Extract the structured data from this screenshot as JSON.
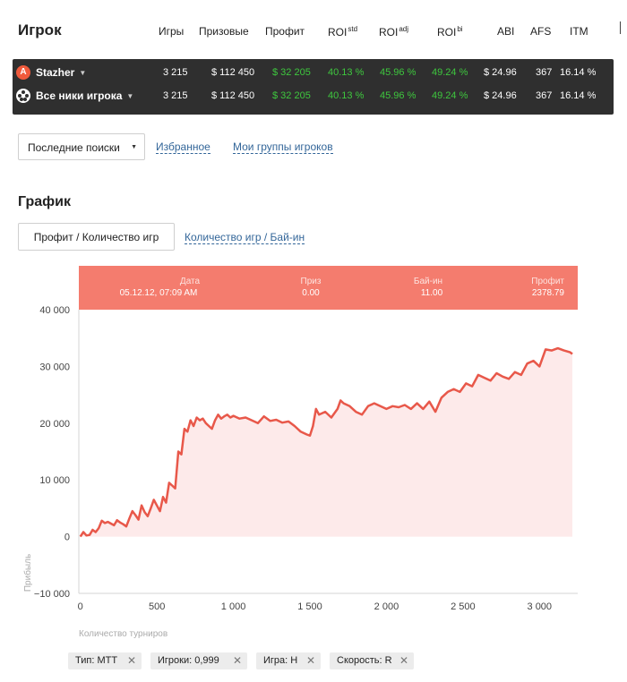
{
  "header": {
    "title": "Игрок",
    "columns": [
      {
        "label": "Игры",
        "sup": ""
      },
      {
        "label": "Призовые",
        "sup": ""
      },
      {
        "label": "Профит",
        "sup": ""
      },
      {
        "label": "ROI",
        "sup": "std"
      },
      {
        "label": "ROI",
        "sup": "adj"
      },
      {
        "label": "ROI",
        "sup": "bi"
      },
      {
        "label": "ABI",
        "sup": ""
      },
      {
        "label": "AFS",
        "sup": ""
      },
      {
        "label": "ITM",
        "sup": ""
      }
    ]
  },
  "players": [
    {
      "name": "Stazher",
      "icon": "a-logo-icon",
      "games": "3 215",
      "prize": "$ 112 450",
      "profit": "$ 32 205",
      "roi_std": "40.13 %",
      "roi_adj": "45.96 %",
      "roi_bi": "49.24 %",
      "abi": "$ 24.96",
      "afs": "367",
      "itm": "16.14 %"
    },
    {
      "name": "Все ники игрока",
      "icon": "people-icon",
      "games": "3 215",
      "prize": "$ 112 450",
      "profit": "$ 32 205",
      "roi_std": "40.13 %",
      "roi_adj": "45.96 %",
      "roi_bi": "49.24 %",
      "abi": "$ 24.96",
      "afs": "367",
      "itm": "16.14 %"
    }
  ],
  "filters_bar": {
    "dropdown_label": "Последние поиски",
    "link_favorites": "Избранное",
    "link_groups": "Мои группы игроков"
  },
  "graph": {
    "title": "График",
    "tab_active": "Профит / Количество игр",
    "tab_other": "Количество игр / Бай-ин"
  },
  "tooltip": {
    "date_label": "Дата",
    "date_value": "05.12.12, 07:09 AM",
    "prize_label": "Приз",
    "prize_value": "0.00",
    "buyin_label": "Бай-ин",
    "buyin_value": "11.00",
    "profit_label": "Профит",
    "profit_value": "2378.79"
  },
  "chart_data": {
    "type": "area",
    "xlabel": "Количество турниров",
    "ylabel": "Прибыль",
    "xlim": [
      -10,
      3250
    ],
    "ylim": [
      -10000,
      40000
    ],
    "x_ticks": [
      0,
      500,
      1000,
      1500,
      2000,
      2500,
      3000
    ],
    "x_tick_labels": [
      "0",
      "500",
      "1 000",
      "1 500",
      "2 000",
      "2 500",
      "3 000"
    ],
    "y_ticks": [
      -10000,
      0,
      10000,
      20000,
      30000,
      40000
    ],
    "y_tick_labels": [
      "−10 000",
      "0",
      "10 000",
      "20 000",
      "30 000",
      "40 000"
    ],
    "line_color": "#e8584a",
    "fill_color": "#fdeaea",
    "series": [
      {
        "x": [
          0,
          20,
          40,
          60,
          80,
          100,
          120,
          140,
          160,
          180,
          200,
          220,
          240,
          260,
          280,
          300,
          320,
          340,
          360,
          380,
          400,
          420,
          440,
          460,
          480,
          500,
          520,
          540,
          560,
          580,
          600,
          620,
          640,
          660,
          680,
          700,
          720,
          740,
          760,
          780,
          800,
          820,
          840,
          860,
          880,
          900,
          920,
          940,
          960,
          980,
          1000,
          1040,
          1080,
          1120,
          1160,
          1200,
          1240,
          1280,
          1320,
          1360,
          1400,
          1440,
          1480,
          1500,
          1520,
          1540,
          1560,
          1600,
          1640,
          1680,
          1700,
          1720,
          1760,
          1800,
          1840,
          1880,
          1920,
          1960,
          2000,
          2040,
          2080,
          2120,
          2160,
          2200,
          2240,
          2280,
          2320,
          2360,
          2400,
          2440,
          2480,
          2520,
          2560,
          2600,
          2640,
          2680,
          2720,
          2760,
          2800,
          2840,
          2880,
          2920,
          2960,
          3000,
          3040,
          3080,
          3120,
          3160,
          3200,
          3215
        ],
        "y": [
          0,
          800,
          200,
          300,
          1200,
          800,
          1500,
          2800,
          2400,
          2600,
          2300,
          2000,
          2900,
          2500,
          2200,
          1800,
          3200,
          4500,
          3800,
          3000,
          5500,
          4300,
          3600,
          5000,
          6500,
          5500,
          4500,
          7000,
          6000,
          9500,
          9000,
          8500,
          15000,
          14500,
          19000,
          18500,
          20500,
          19500,
          21000,
          20500,
          20800,
          20000,
          19500,
          19000,
          20500,
          21500,
          20800,
          21200,
          21500,
          21000,
          21300,
          20800,
          21000,
          20500,
          20000,
          21200,
          20400,
          20600,
          20100,
          20300,
          19500,
          18500,
          18000,
          17800,
          19500,
          22500,
          21500,
          22000,
          21000,
          22500,
          24000,
          23500,
          23000,
          22000,
          21500,
          23000,
          23500,
          23000,
          22500,
          23000,
          22800,
          23200,
          22500,
          23500,
          22500,
          23800,
          22000,
          24500,
          25500,
          26000,
          25500,
          27000,
          26500,
          28500,
          28000,
          27500,
          28800,
          28200,
          27800,
          29000,
          28500,
          30500,
          31000,
          30000,
          33000,
          32800,
          33200,
          32800,
          32500,
          32200
        ]
      }
    ]
  },
  "chips": [
    {
      "label": "Тип: MTT"
    },
    {
      "label": "Игроки: 0,999"
    },
    {
      "label": "Игра: H"
    },
    {
      "label": "Скорость: R"
    }
  ]
}
